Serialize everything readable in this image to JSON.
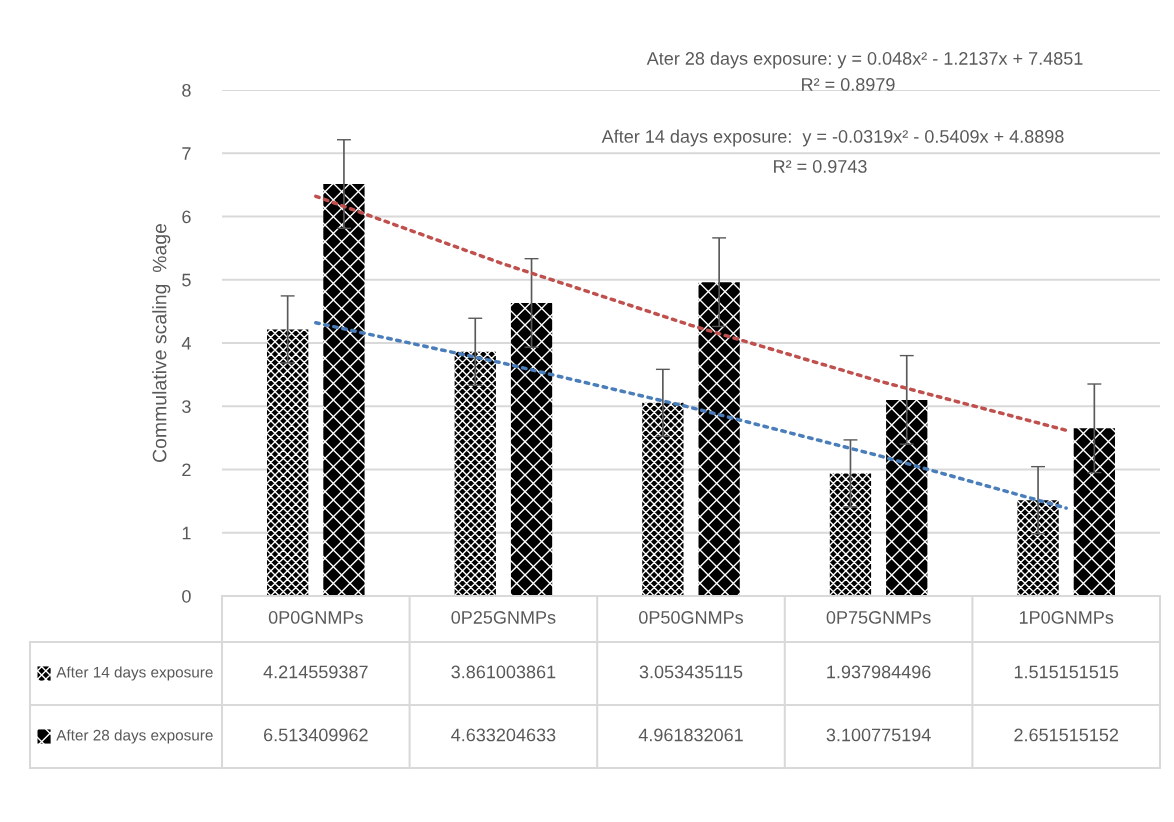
{
  "chart_data": {
    "type": "bar",
    "ylabel": "Commulative scaling  %age",
    "categories": [
      "0P0GNMPs",
      "0P25GNMPs",
      "0P50GNMPs",
      "0P75GNMPs",
      "1P0GNMPs"
    ],
    "series": [
      {
        "name": "After 14 days exposure",
        "color": "#000000",
        "values": [
          4.214559387,
          3.861003861,
          3.053435115,
          1.937984496,
          1.515151515
        ],
        "value_labels": [
          "4.214559387",
          "3.861003861",
          "3.053435115",
          "1.937984496",
          "1.515151515"
        ],
        "errors": [
          0.53,
          0.53,
          0.53,
          0.53,
          0.53
        ]
      },
      {
        "name": "After 28 days exposure",
        "color": "#000000",
        "values": [
          6.513409962,
          4.633204633,
          4.961832061,
          3.100775194,
          2.651515152
        ],
        "value_labels": [
          "6.513409962",
          "4.633204633",
          "4.961832061",
          "3.100775194",
          "2.651515152"
        ],
        "errors": [
          0.7,
          0.7,
          0.7,
          0.7,
          0.7
        ]
      },
      {
        "type": "line",
        "color": "#c0504d",
        "line_style": "dotted",
        "values": [
          6.32,
          5.25,
          4.28,
          3.4,
          2.62
        ]
      },
      {
        "type": "line",
        "color": "#4a7ebb",
        "line_style": "dotted",
        "values": [
          4.32,
          3.68,
          2.98,
          2.22,
          1.39
        ]
      }
    ],
    "ylim": [
      0,
      8
    ],
    "yticks": [
      0,
      1,
      2,
      3,
      4,
      5,
      6,
      7,
      8
    ],
    "grid": "y",
    "legend": "bottom",
    "annotations": [
      "Ater 28 days exposure: y = 0.048x² - 1.2137x + 7.4851",
      "R² = 0.8979",
      "After 14 days exposure:  y = -0.0319x² - 0.5409x + 4.8898",
      "R² = 0.9743"
    ]
  }
}
